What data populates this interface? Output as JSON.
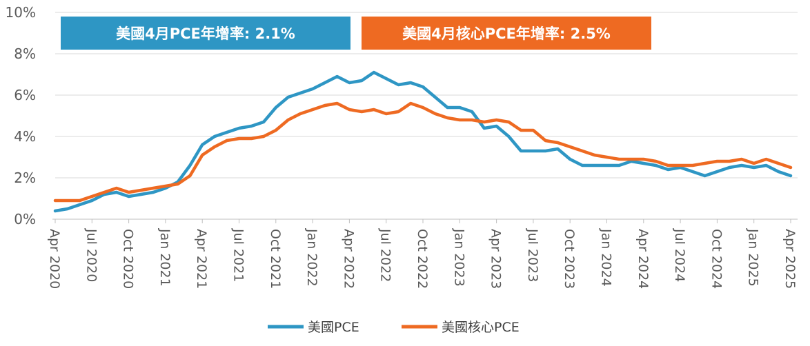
{
  "chart_data": {
    "type": "line",
    "title": "",
    "xlabel": "",
    "ylabel": "",
    "y_unit": "%",
    "ylim": [
      0,
      10
    ],
    "y_ticks": [
      "0%",
      "2%",
      "4%",
      "6%",
      "8%",
      "10%"
    ],
    "x_tick_labels": [
      "Apr 2020",
      "Jul 2020",
      "Oct 2020",
      "Jan 2021",
      "Apr 2021",
      "Jul 2021",
      "Oct 2021",
      "Jan 2022",
      "Apr 2022",
      "Jul 2022",
      "Oct 2022",
      "Jan 2023",
      "Apr 2023",
      "Jul 2023",
      "Oct 2023",
      "Jan 2024",
      "Apr 2024",
      "Jul 2024",
      "Oct 2024",
      "Jan 2025",
      "Apr 2025"
    ],
    "x_months": [
      "2020-04",
      "2020-05",
      "2020-06",
      "2020-07",
      "2020-08",
      "2020-09",
      "2020-10",
      "2020-11",
      "2020-12",
      "2021-01",
      "2021-02",
      "2021-03",
      "2021-04",
      "2021-05",
      "2021-06",
      "2021-07",
      "2021-08",
      "2021-09",
      "2021-10",
      "2021-11",
      "2021-12",
      "2022-01",
      "2022-02",
      "2022-03",
      "2022-04",
      "2022-05",
      "2022-06",
      "2022-07",
      "2022-08",
      "2022-09",
      "2022-10",
      "2022-11",
      "2022-12",
      "2023-01",
      "2023-02",
      "2023-03",
      "2023-04",
      "2023-05",
      "2023-06",
      "2023-07",
      "2023-08",
      "2023-09",
      "2023-10",
      "2023-11",
      "2023-12",
      "2024-01",
      "2024-02",
      "2024-03",
      "2024-04",
      "2024-05",
      "2024-06",
      "2024-07",
      "2024-08",
      "2024-09",
      "2024-10",
      "2024-11",
      "2024-12",
      "2025-01",
      "2025-02",
      "2025-03",
      "2025-04"
    ],
    "grid": true,
    "legend_position": "bottom",
    "series": [
      {
        "name": "美國PCE",
        "color": "#2E96C4",
        "values": [
          0.4,
          0.5,
          0.7,
          0.9,
          1.2,
          1.3,
          1.1,
          1.2,
          1.3,
          1.5,
          1.8,
          2.6,
          3.6,
          4.0,
          4.2,
          4.4,
          4.5,
          4.7,
          5.4,
          5.9,
          6.1,
          6.3,
          6.6,
          6.9,
          6.6,
          6.7,
          7.1,
          6.8,
          6.5,
          6.6,
          6.4,
          5.9,
          5.4,
          5.4,
          5.2,
          4.4,
          4.5,
          4.0,
          3.3,
          3.3,
          3.3,
          3.4,
          2.9,
          2.6,
          2.6,
          2.6,
          2.6,
          2.8,
          2.7,
          2.6,
          2.4,
          2.5,
          2.3,
          2.1,
          2.3,
          2.5,
          2.6,
          2.5,
          2.6,
          2.3,
          2.1
        ]
      },
      {
        "name": "美國核心PCE",
        "color": "#EE6A22",
        "values": [
          0.9,
          0.9,
          0.9,
          1.1,
          1.3,
          1.5,
          1.3,
          1.4,
          1.5,
          1.6,
          1.7,
          2.1,
          3.1,
          3.5,
          3.8,
          3.9,
          3.9,
          4.0,
          4.3,
          4.8,
          5.1,
          5.3,
          5.5,
          5.6,
          5.3,
          5.2,
          5.3,
          5.1,
          5.2,
          5.6,
          5.4,
          5.1,
          4.9,
          4.8,
          4.8,
          4.7,
          4.8,
          4.7,
          4.3,
          4.3,
          3.8,
          3.7,
          3.5,
          3.3,
          3.1,
          3.0,
          2.9,
          2.9,
          2.9,
          2.8,
          2.6,
          2.6,
          2.6,
          2.7,
          2.8,
          2.8,
          2.9,
          2.7,
          2.9,
          2.7,
          2.5
        ]
      }
    ]
  },
  "callouts": {
    "pce": {
      "text": "美國4月PCE年增率: 2.1%",
      "color": "#2E96C4"
    },
    "core": {
      "text": "美國4月核心PCE年增率: 2.5%",
      "color": "#EE6A22"
    }
  },
  "legend": {
    "items": [
      "美國PCE",
      "美國核心PCE"
    ]
  }
}
